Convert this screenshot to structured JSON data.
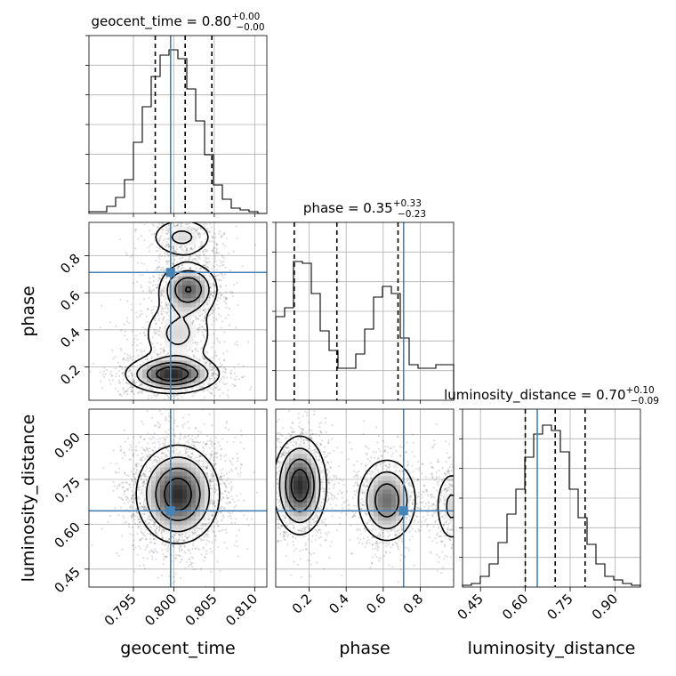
{
  "chart_data": {
    "type": "corner",
    "variables": [
      {
        "name": "geocent_time",
        "axis_label": "geocent_time",
        "range": [
          0.7895,
          0.8115
        ],
        "ticks": [
          0.795,
          0.8,
          0.805,
          0.81
        ],
        "tick_labels": [
          "0.795",
          "0.800",
          "0.805",
          "0.810"
        ],
        "title_prefix": "geocent_time = 0.80",
        "title_sup": "+0.00",
        "title_sub": "−0.00",
        "median": 0.8014,
        "q_low": 0.7977,
        "q_high": 0.8047,
        "truth": 0.7996,
        "hist": [
          0.01,
          0.01,
          0.04,
          0.09,
          0.19,
          0.4,
          0.6,
          0.77,
          0.89,
          0.92,
          0.87,
          0.7,
          0.52,
          0.33,
          0.16,
          0.08,
          0.03,
          0.02,
          0.01,
          0.0
        ]
      },
      {
        "name": "phase",
        "axis_label": "phase",
        "range": [
          0.02,
          0.98
        ],
        "ticks": [
          0.2,
          0.4,
          0.6,
          0.8
        ],
        "tick_labels": [
          "0.2",
          "0.4",
          "0.6",
          "0.8"
        ],
        "title_prefix": "phase = 0.35",
        "title_sup": "+0.33",
        "title_sub": "−0.23",
        "median": 0.35,
        "q_low": 0.12,
        "q_high": 0.68,
        "truth": 0.71,
        "hist": [
          0.47,
          0.52,
          0.78,
          0.77,
          0.6,
          0.39,
          0.28,
          0.18,
          0.18,
          0.26,
          0.4,
          0.58,
          0.64,
          0.6,
          0.35,
          0.2,
          0.18,
          0.18,
          0.2,
          0.2
        ]
      },
      {
        "name": "luminosity_distance",
        "axis_label": "luminosity_distance",
        "range": [
          0.39,
          0.985
        ],
        "ticks": [
          0.45,
          0.6,
          0.75,
          0.9
        ],
        "tick_labels": [
          "0.45",
          "0.60",
          "0.75",
          "0.90"
        ],
        "title_prefix": "luminosity_distance = 0.70",
        "title_sup": "+0.10",
        "title_sub": "−0.09",
        "median": 0.7,
        "q_low": 0.6,
        "q_high": 0.8,
        "truth": 0.64,
        "hist": [
          0.01,
          0.02,
          0.06,
          0.13,
          0.25,
          0.41,
          0.55,
          0.73,
          0.86,
          0.91,
          0.88,
          0.76,
          0.55,
          0.39,
          0.24,
          0.13,
          0.06,
          0.04,
          0.02,
          0.01
        ]
      }
    ],
    "pairs": [
      {
        "x": "geocent_time",
        "y": "phase",
        "truth": [
          0.7996,
          0.71
        ],
        "modes": [
          {
            "cx": 0.8018,
            "cy": 0.62,
            "sx": 0.0018,
            "sy": 0.07,
            "w": 0.8
          },
          {
            "cx": 0.7998,
            "cy": 0.16,
            "sx": 0.0028,
            "sy": 0.05,
            "w": 1.0
          },
          {
            "cx": 0.8005,
            "cy": 0.38,
            "sx": 0.0025,
            "sy": 0.1,
            "w": 0.35
          },
          {
            "cx": 0.801,
            "cy": 0.9,
            "sx": 0.0022,
            "sy": 0.06,
            "w": 0.35
          }
        ]
      },
      {
        "x": "geocent_time",
        "y": "luminosity_distance",
        "truth": [
          0.7996,
          0.645
        ],
        "modes": [
          {
            "cx": 0.8005,
            "cy": 0.7,
            "sx": 0.0025,
            "sy": 0.08,
            "w": 1.0
          }
        ]
      },
      {
        "x": "phase",
        "y": "luminosity_distance",
        "truth": [
          0.71,
          0.645
        ],
        "modes": [
          {
            "cx": 0.15,
            "cy": 0.73,
            "sx": 0.07,
            "sy": 0.08,
            "w": 1.0
          },
          {
            "cx": 0.62,
            "cy": 0.68,
            "sx": 0.08,
            "sy": 0.07,
            "w": 0.75
          },
          {
            "cx": 0.97,
            "cy": 0.66,
            "sx": 0.05,
            "sy": 0.07,
            "w": 0.35
          }
        ]
      }
    ],
    "colors": {
      "truth": "#4682b4",
      "hist_line": "#000000",
      "quantile_line": "#000000",
      "grid": "#b0b0b0",
      "scatter": "#000000",
      "axis": "#000000"
    },
    "grid": true
  }
}
